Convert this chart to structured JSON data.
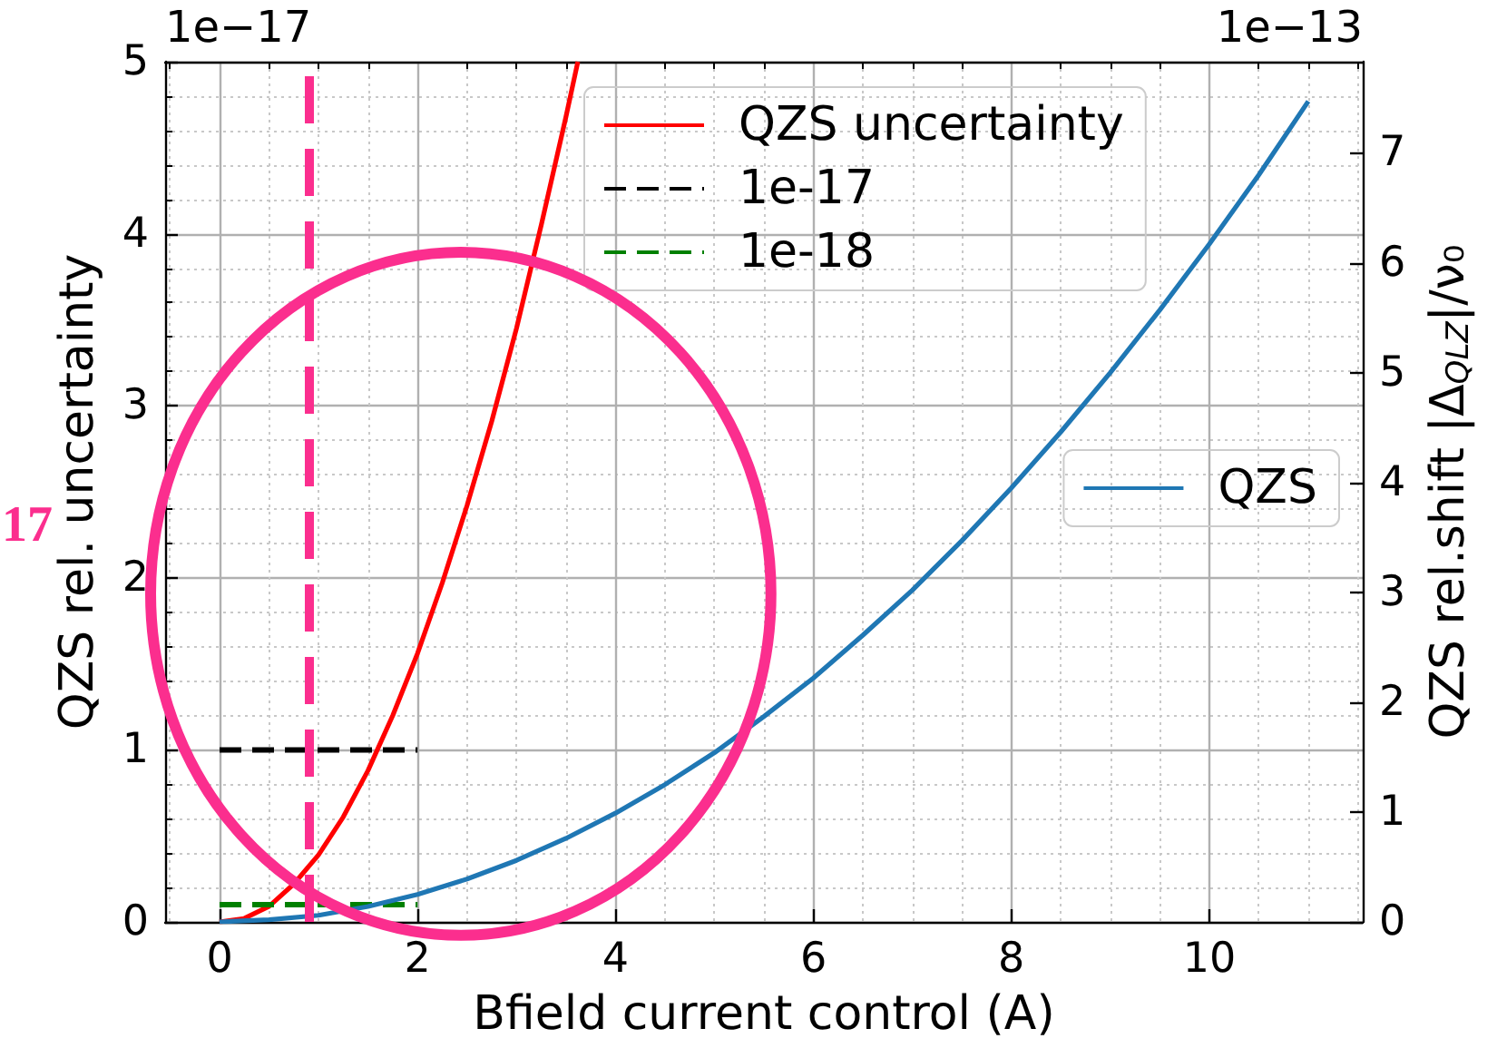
{
  "chart_data": {
    "type": "line",
    "xlabel": "Bfield current control (A)",
    "ylabel": "QZS rel. uncertainty",
    "y2label": "QZS rel.shift |Δ$_{QLZ}$|/ν₀",
    "annotations": [
      "1e−17",
      "1e−13",
      "17"
    ],
    "series": [
      {
        "name": "QZS uncertainty",
        "color": "#ff0000",
        "x": [
          0,
          0.25,
          0.5,
          0.75,
          1,
          1.25,
          1.5,
          1.75,
          2,
          2.25,
          2.5,
          2.75,
          3,
          3.25,
          3.5,
          3.62
        ],
        "values": [
          0,
          0.02,
          0.09,
          0.22,
          0.39,
          0.61,
          0.88,
          1.2,
          1.56,
          1.97,
          2.42,
          2.91,
          3.45,
          4.05,
          4.68,
          5
        ]
      },
      {
        "name": "1e-17",
        "color": "#000000",
        "line_style": "dashed",
        "x": [
          0,
          2
        ],
        "values": [
          1,
          1
        ]
      },
      {
        "name": "1e-18",
        "color": "#008000",
        "line_style": "dashed",
        "x": [
          0,
          2
        ],
        "values": [
          0.1,
          0.1
        ]
      },
      {
        "name": "QZS",
        "color": "#1f77b4",
        "axis": "y2",
        "x": [
          0,
          0.5,
          1,
          1.5,
          2,
          2.5,
          3,
          3.5,
          4,
          4.5,
          5,
          5.5,
          6,
          6.5,
          7,
          7.5,
          8,
          8.5,
          9,
          9.5,
          10,
          10.5,
          11
        ],
        "values": [
          0,
          0.02,
          0.06,
          0.14,
          0.25,
          0.39,
          0.56,
          0.76,
          0.99,
          1.25,
          1.54,
          1.87,
          2.22,
          2.61,
          3.02,
          3.47,
          3.95,
          4.46,
          5,
          5.57,
          6.17,
          6.8,
          7.47
        ]
      }
    ],
    "xlim": [
      -0.55,
      11.55
    ],
    "xticks": [
      {
        "value": -0.5,
        "label": null
      },
      0,
      {
        "value": 0.5,
        "label": null
      },
      {
        "value": 1,
        "label": null
      },
      {
        "value": 1.5,
        "label": null
      },
      2,
      {
        "value": 2.5,
        "label": null
      },
      {
        "value": 3,
        "label": null
      },
      {
        "value": 3.5,
        "label": null
      },
      4,
      {
        "value": 4.5,
        "label": null
      },
      {
        "value": 5,
        "label": null
      },
      {
        "value": 5.5,
        "label": null
      },
      6,
      {
        "value": 6.5,
        "label": null
      },
      {
        "value": 7,
        "label": null
      },
      {
        "value": 7.5,
        "label": null
      },
      8,
      {
        "value": 8.5,
        "label": null
      },
      {
        "value": 9,
        "label": null
      },
      {
        "value": 9.5,
        "label": null
      },
      10,
      {
        "value": 10.5,
        "label": null
      },
      {
        "value": 11,
        "label": null
      },
      {
        "value": 11.5,
        "label": null
      }
    ],
    "ylim": [
      0,
      5
    ],
    "yticks": [
      0,
      {
        "value": 0.2,
        "label": null
      },
      {
        "value": 0.4,
        "label": null
      },
      {
        "value": 0.6,
        "label": null
      },
      {
        "value": 0.8,
        "label": null
      },
      1,
      {
        "value": 1.2,
        "label": null
      },
      {
        "value": 1.4,
        "label": null
      },
      {
        "value": 1.6,
        "label": null
      },
      {
        "value": 1.8,
        "label": null
      },
      2,
      {
        "value": 2.2,
        "label": null
      },
      {
        "value": 2.4,
        "label": null
      },
      {
        "value": 2.6,
        "label": null
      },
      {
        "value": 2.8,
        "label": null
      },
      3,
      {
        "value": 3.2,
        "label": null
      },
      {
        "value": 3.4,
        "label": null
      },
      {
        "value": 3.6,
        "label": null
      },
      {
        "value": 3.8,
        "label": null
      },
      4,
      {
        "value": 4.2,
        "label": null
      },
      {
        "value": 4.4,
        "label": null
      },
      {
        "value": 4.6,
        "label": null
      },
      {
        "value": 4.8,
        "label": null
      },
      5
    ],
    "y2lim": [
      0,
      7.83
    ],
    "y2ticks": [
      0,
      1,
      2,
      3,
      4,
      5,
      6,
      7
    ],
    "ref_lines": [
      {
        "axis": "x",
        "value": 0.9,
        "color": "#fb2e8e",
        "line_style": "dashed"
      }
    ],
    "grid": true,
    "legend": "top",
    "marker": "none",
    "line_style": "solid"
  }
}
